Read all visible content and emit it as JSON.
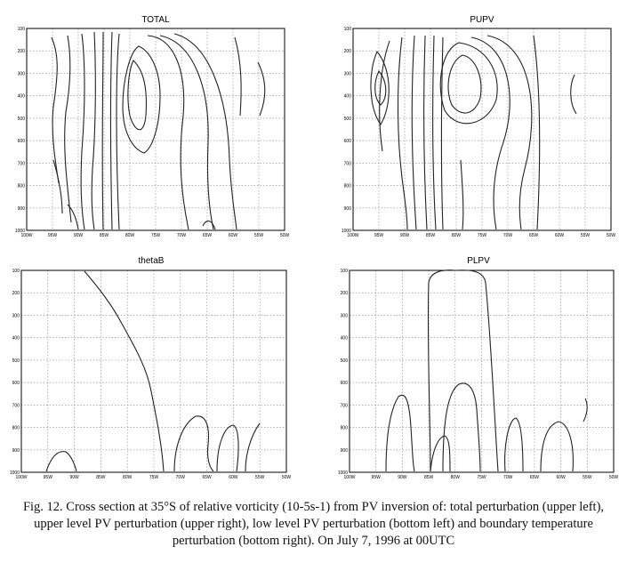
{
  "figure": {
    "label": "Fig. 12.",
    "caption_lines": [
      "Cross section at 35°S of relative vorticity (10-5s-1) from PV inversion of: total perturbation (upper",
      "left), upper level PV perturbation (upper right), low level PV perturbation (bottom left) and boundary",
      "temperature perturbation (bottom right). On July 7, 1996 at 00UTC"
    ],
    "x_ticks": [
      "100W",
      "95W",
      "90W",
      "85W",
      "80W",
      "75W",
      "70W",
      "65W",
      "60W",
      "55W",
      "50W"
    ],
    "y_ticks": [
      "100",
      "200",
      "300",
      "400",
      "500",
      "600",
      "700",
      "800",
      "900",
      "1000"
    ]
  },
  "chart_data": [
    {
      "type": "contour",
      "title": "TOTAL",
      "xlim": [
        -100,
        -50
      ],
      "ylim": [
        1000,
        100
      ],
      "xlabel": "",
      "ylabel": "",
      "grid": true,
      "dashed_grid": true
    },
    {
      "type": "contour",
      "title": "PUPV",
      "xlim": [
        -100,
        -50
      ],
      "ylim": [
        1000,
        100
      ],
      "xlabel": "",
      "ylabel": "",
      "grid": true,
      "dashed_grid": true
    },
    {
      "type": "contour",
      "title": "thetaB",
      "xlim": [
        -100,
        -50
      ],
      "ylim": [
        1000,
        100
      ],
      "xlabel": "",
      "ylabel": "",
      "grid": true,
      "dashed_grid": true
    },
    {
      "type": "contour",
      "title": "PLPV",
      "xlim": [
        -100,
        -50
      ],
      "ylim": [
        1000,
        100
      ],
      "xlabel": "",
      "ylabel": "",
      "grid": true,
      "dashed_grid": true
    }
  ]
}
